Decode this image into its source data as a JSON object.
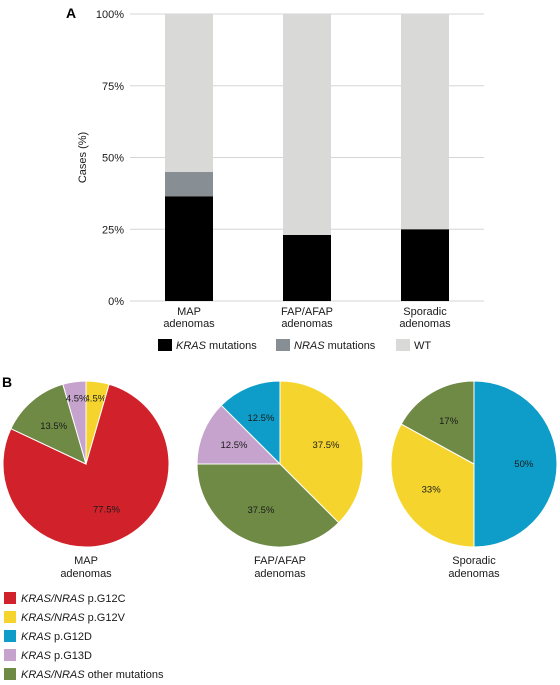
{
  "panels": {
    "a": "A",
    "b": "B"
  },
  "colors": {
    "kras": "#000000",
    "nras": "#878f94",
    "wt": "#d9dad7",
    "grid": "#d5d5d5",
    "g12c": "#d1222b",
    "g12v": "#f5d52d",
    "g12d": "#0d9dc8",
    "g13d": "#c6a3cd",
    "other": "#6f8a45"
  },
  "chart_data": [
    {
      "type": "bar",
      "stacked": true,
      "panel": "A",
      "ylabel": "Cases (%)",
      "ylim": [
        0,
        100
      ],
      "yticks": [
        "0%",
        "25%",
        "50%",
        "75%",
        "100%"
      ],
      "grid": true,
      "legend_position": "bottom",
      "categories": [
        [
          "MAP",
          "adenomas"
        ],
        [
          "FAP/AFAP",
          "adenomas"
        ],
        [
          "Sporadic",
          "adenomas"
        ]
      ],
      "series": [
        {
          "name_italic": "KRAS",
          "name_rest": " mutations",
          "color": "#000000",
          "values": [
            36.5,
            23,
            25
          ]
        },
        {
          "name_italic": "NRAS",
          "name_rest": " mutations",
          "color": "#878f94",
          "values": [
            8.5,
            0,
            0
          ]
        },
        {
          "name_italic": "",
          "name_rest": "WT",
          "color": "#d9dad7",
          "values": [
            55,
            77,
            75
          ]
        }
      ]
    },
    {
      "type": "pie",
      "panel": "B",
      "pies": [
        {
          "label": [
            "MAP",
            "adenomas"
          ],
          "slices": [
            {
              "key": "g12v",
              "value": 4.5,
              "label": "4.5%"
            },
            {
              "key": "g12c",
              "value": 77.5,
              "label": "77.5%"
            },
            {
              "key": "other",
              "value": 13.5,
              "label": "13.5%"
            },
            {
              "key": "g13d",
              "value": 4.5,
              "label": "4.5%"
            }
          ]
        },
        {
          "label": [
            "FAP/AFAP",
            "adenomas"
          ],
          "slices": [
            {
              "key": "g12v",
              "value": 37.5,
              "label": "37.5%"
            },
            {
              "key": "other",
              "value": 37.5,
              "label": "37.5%"
            },
            {
              "key": "g13d",
              "value": 12.5,
              "label": "12.5%"
            },
            {
              "key": "g12d",
              "value": 12.5,
              "label": "12.5%"
            }
          ]
        },
        {
          "label": [
            "Sporadic",
            "adenomas"
          ],
          "slices": [
            {
              "key": "g12d",
              "value": 50,
              "label": "50%"
            },
            {
              "key": "g12v",
              "value": 33,
              "label": "33%"
            },
            {
              "key": "other",
              "value": 17,
              "label": "17%"
            }
          ]
        }
      ],
      "legend": [
        {
          "key": "g12c",
          "italic": "KRAS/NRAS",
          "rest": " p.G12C"
        },
        {
          "key": "g12v",
          "italic": "KRAS/NRAS",
          "rest": " p.G12V"
        },
        {
          "key": "g12d",
          "italic": "KRAS",
          "rest": " p.G12D"
        },
        {
          "key": "g13d",
          "italic": "KRAS",
          "rest": " p.G13D"
        },
        {
          "key": "other",
          "italic": "KRAS/NRAS",
          "rest": " other mutations"
        }
      ]
    }
  ]
}
